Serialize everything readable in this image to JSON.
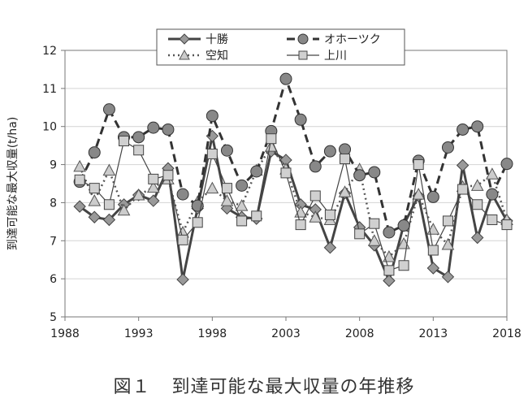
{
  "figure": {
    "number": "図１",
    "title": "到達可能な最大収量の年推移"
  },
  "chart_data": {
    "type": "line",
    "title": "",
    "xlabel": "",
    "ylabel": "到達可能な最大収量(t/ha)",
    "xlim": [
      1988,
      2018
    ],
    "ylim": [
      5,
      12
    ],
    "xticks": [
      1988,
      1993,
      1998,
      2003,
      2008,
      2013,
      2018
    ],
    "yticks": [
      5,
      6,
      7,
      8,
      9,
      10,
      11,
      12
    ],
    "grid": "horizontal",
    "legend_position": "top",
    "x": [
      1989,
      1990,
      1991,
      1992,
      1993,
      1994,
      1995,
      1996,
      1997,
      1998,
      1999,
      2000,
      2001,
      2002,
      2003,
      2004,
      2005,
      2006,
      2007,
      2008,
      2009,
      2010,
      2011,
      2012,
      2013,
      2014,
      2015,
      2016,
      2017,
      2018
    ],
    "series": [
      {
        "name": "十勝",
        "line": "solid",
        "marker": "diamond",
        "color": "#444444",
        "fill": "#999999",
        "values": [
          7.9,
          7.62,
          7.55,
          7.95,
          8.2,
          8.05,
          8.9,
          5.98,
          7.85,
          9.75,
          7.85,
          7.62,
          7.58,
          9.35,
          9.12,
          7.95,
          7.82,
          6.82,
          8.25,
          7.35,
          6.88,
          5.95,
          7.42,
          8.18,
          6.28,
          6.05,
          8.98,
          7.08,
          8.22,
          7.52
        ]
      },
      {
        "name": "オホーツク",
        "line": "dashed",
        "marker": "circle",
        "color": "#333333",
        "fill": "#888888",
        "values": [
          8.55,
          9.32,
          10.45,
          9.72,
          9.72,
          9.97,
          9.92,
          8.22,
          7.92,
          10.28,
          9.37,
          8.45,
          8.82,
          9.88,
          11.25,
          10.18,
          8.95,
          9.35,
          9.4,
          8.72,
          8.8,
          7.22,
          7.4,
          9.1,
          8.15,
          9.45,
          9.92,
          10.0,
          8.22,
          9.02
        ]
      },
      {
        "name": "空知",
        "line": "dotted",
        "marker": "triangle",
        "color": "#555555",
        "fill": "#cccccc",
        "values": [
          8.95,
          8.05,
          8.85,
          7.8,
          8.2,
          8.4,
          8.62,
          7.22,
          8.02,
          8.38,
          8.05,
          7.92,
          8.85,
          9.48,
          8.88,
          7.75,
          7.62,
          7.55,
          8.28,
          8.88,
          7.0,
          6.58,
          6.92,
          8.22,
          7.3,
          6.9,
          8.42,
          8.45,
          8.75,
          7.55
        ]
      },
      {
        "name": "上川",
        "line": "thin",
        "marker": "square",
        "color": "#444444",
        "fill": "#d0d0d0",
        "values": [
          8.6,
          8.38,
          7.95,
          9.62,
          9.38,
          8.62,
          8.72,
          7.02,
          7.48,
          9.28,
          8.38,
          7.52,
          7.65,
          9.68,
          8.78,
          7.42,
          8.18,
          7.68,
          9.15,
          7.18,
          7.45,
          6.22,
          6.35,
          9.0,
          6.75,
          7.52,
          8.35,
          7.95,
          7.55,
          7.42
        ]
      }
    ]
  }
}
